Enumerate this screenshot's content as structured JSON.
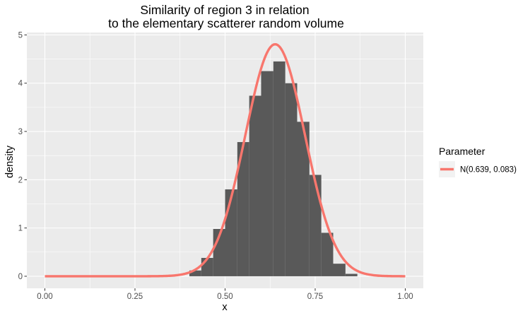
{
  "chart_data": {
    "type": "histogram-with-density-curve",
    "title": [
      "Similarity of region 3 in relation",
      "to the elementary scatterer random volume"
    ],
    "xlabel": "x",
    "ylabel": "density",
    "xlim": [
      -0.05,
      1.05
    ],
    "ylim": [
      -0.25,
      5.05
    ],
    "x_ticks": [
      0.0,
      0.25,
      0.5,
      0.75,
      1.0
    ],
    "x_tick_labels": [
      "0.00",
      "0.25",
      "0.50",
      "0.75",
      "1.00"
    ],
    "y_ticks": [
      0,
      1,
      2,
      3,
      4,
      5
    ],
    "y_tick_labels": [
      "0",
      "1",
      "2",
      "3",
      "4",
      "5"
    ],
    "grid": true,
    "background": "#ebebeb",
    "histogram": {
      "fill": "#595959",
      "bin_width": 0.0333,
      "bins": [
        {
          "x0": 0.401,
          "x1": 0.434,
          "value": 0.12
        },
        {
          "x0": 0.434,
          "x1": 0.467,
          "value": 0.38
        },
        {
          "x0": 0.467,
          "x1": 0.5,
          "value": 0.98
        },
        {
          "x0": 0.5,
          "x1": 0.534,
          "value": 1.8
        },
        {
          "x0": 0.534,
          "x1": 0.567,
          "value": 2.78
        },
        {
          "x0": 0.567,
          "x1": 0.6,
          "value": 3.74
        },
        {
          "x0": 0.6,
          "x1": 0.634,
          "value": 4.25
        },
        {
          "x0": 0.634,
          "x1": 0.667,
          "value": 4.45
        },
        {
          "x0": 0.667,
          "x1": 0.7,
          "value": 4.0
        },
        {
          "x0": 0.7,
          "x1": 0.734,
          "value": 3.2
        },
        {
          "x0": 0.734,
          "x1": 0.767,
          "value": 2.1
        },
        {
          "x0": 0.767,
          "x1": 0.8,
          "value": 0.9
        },
        {
          "x0": 0.8,
          "x1": 0.834,
          "value": 0.26
        },
        {
          "x0": 0.834,
          "x1": 0.867,
          "value": 0.05
        }
      ]
    },
    "series": [
      {
        "name": "N(0.639, 0.083)",
        "type": "normal-density",
        "mean": 0.639,
        "sd": 0.083,
        "x_range": [
          0.0,
          1.0
        ],
        "color": "#f8766d"
      }
    ],
    "legend": {
      "title": "Parameter",
      "position": "right"
    }
  }
}
